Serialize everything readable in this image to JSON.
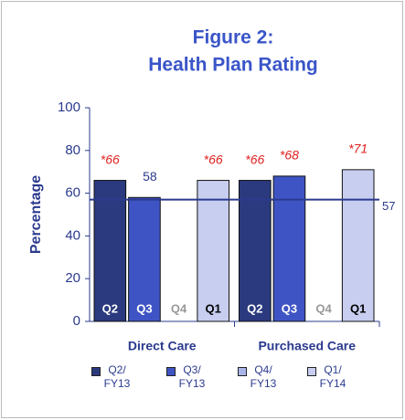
{
  "chart_data": {
    "type": "bar",
    "title": [
      "Figure 2:",
      "Health Plan Rating"
    ],
    "ylabel": "Percentage",
    "categories": [
      "Direct Care",
      "Purchased Care"
    ],
    "series": [
      {
        "name": "Q2/ FY13",
        "short_label": "Q2",
        "color": "#2b3a7e",
        "label_color": "#ffffff",
        "values": [
          66,
          66
        ],
        "value_labels": [
          "*66",
          "*66"
        ]
      },
      {
        "name": "Q3/ FY13",
        "short_label": "Q3",
        "color": "#3f54c4",
        "label_color": "#ffffff",
        "values": [
          58,
          68
        ],
        "value_labels": [
          "58",
          "*68"
        ]
      },
      {
        "name": "Q4/ FY13",
        "short_label": "Q4",
        "color": "#a9b4e8",
        "label_color": "#999999",
        "values": [
          null,
          null
        ],
        "value_labels": [
          null,
          null
        ]
      },
      {
        "name": "Q1/ FY14",
        "short_label": "Q1",
        "color": "#c8cef0",
        "label_color": "#000000",
        "values": [
          66,
          71
        ],
        "value_labels": [
          "*66",
          "*71"
        ]
      }
    ],
    "reference_line": 57,
    "reference_color": "#2b3a8e",
    "ylim": [
      0,
      100
    ],
    "yticks": [
      0,
      20,
      40,
      60,
      80,
      100
    ]
  }
}
